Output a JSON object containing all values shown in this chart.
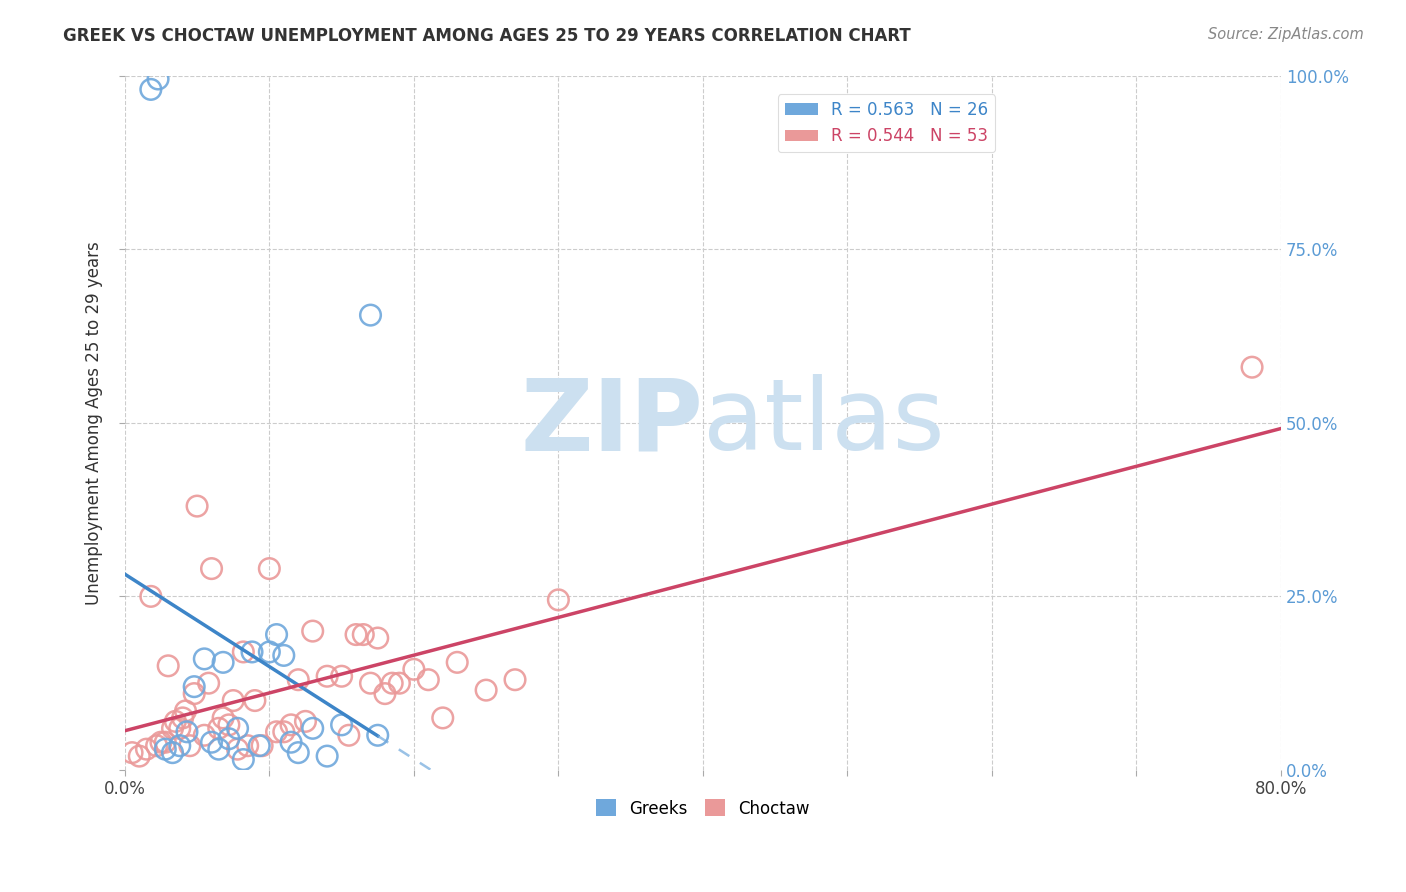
{
  "title": "GREEK VS CHOCTAW UNEMPLOYMENT AMONG AGES 25 TO 29 YEARS CORRELATION CHART",
  "source": "Source: ZipAtlas.com",
  "ylabel": "Unemployment Among Ages 25 to 29 years",
  "xlim": [
    0.0,
    0.8
  ],
  "ylim": [
    0.0,
    1.0
  ],
  "y_tick_labels_right": [
    "0.0%",
    "25.0%",
    "50.0%",
    "75.0%",
    "100.0%"
  ],
  "y_ticks_right": [
    0.0,
    0.25,
    0.5,
    0.75,
    1.0
  ],
  "greek_R": 0.563,
  "greek_N": 26,
  "choctaw_R": 0.544,
  "choctaw_N": 53,
  "greek_color": "#6fa8dc",
  "choctaw_color": "#ea9999",
  "greek_line_color": "#3d85c8",
  "choctaw_line_color": "#cc4466",
  "greek_scatter_x": [
    0.018,
    0.023,
    0.028,
    0.033,
    0.038,
    0.043,
    0.048,
    0.055,
    0.06,
    0.065,
    0.068,
    0.072,
    0.078,
    0.082,
    0.088,
    0.093,
    0.1,
    0.105,
    0.11,
    0.115,
    0.12,
    0.13,
    0.14,
    0.15,
    0.17,
    0.175
  ],
  "greek_scatter_y": [
    0.98,
    0.995,
    0.03,
    0.025,
    0.035,
    0.055,
    0.12,
    0.16,
    0.04,
    0.03,
    0.155,
    0.045,
    0.06,
    0.015,
    0.17,
    0.035,
    0.17,
    0.195,
    0.165,
    0.04,
    0.025,
    0.06,
    0.02,
    0.065,
    0.655,
    0.05
  ],
  "choctaw_scatter_x": [
    0.005,
    0.01,
    0.015,
    0.018,
    0.022,
    0.025,
    0.028,
    0.03,
    0.033,
    0.035,
    0.038,
    0.04,
    0.042,
    0.045,
    0.048,
    0.05,
    0.055,
    0.058,
    0.06,
    0.065,
    0.068,
    0.072,
    0.075,
    0.078,
    0.082,
    0.085,
    0.09,
    0.095,
    0.1,
    0.105,
    0.11,
    0.115,
    0.12,
    0.125,
    0.13,
    0.14,
    0.15,
    0.155,
    0.16,
    0.165,
    0.17,
    0.175,
    0.18,
    0.185,
    0.19,
    0.2,
    0.21,
    0.22,
    0.23,
    0.25,
    0.27,
    0.3,
    0.78
  ],
  "choctaw_scatter_y": [
    0.025,
    0.02,
    0.03,
    0.25,
    0.035,
    0.04,
    0.04,
    0.15,
    0.06,
    0.07,
    0.06,
    0.075,
    0.085,
    0.035,
    0.11,
    0.38,
    0.05,
    0.125,
    0.29,
    0.06,
    0.075,
    0.065,
    0.1,
    0.03,
    0.17,
    0.035,
    0.1,
    0.035,
    0.29,
    0.055,
    0.055,
    0.065,
    0.13,
    0.07,
    0.2,
    0.135,
    0.135,
    0.05,
    0.195,
    0.195,
    0.125,
    0.19,
    0.11,
    0.125,
    0.125,
    0.145,
    0.13,
    0.075,
    0.155,
    0.115,
    0.13,
    0.245,
    0.58
  ],
  "background_color": "#ffffff",
  "watermark_zip": "ZIP",
  "watermark_atlas": "atlas",
  "watermark_color": "#cce0f0"
}
